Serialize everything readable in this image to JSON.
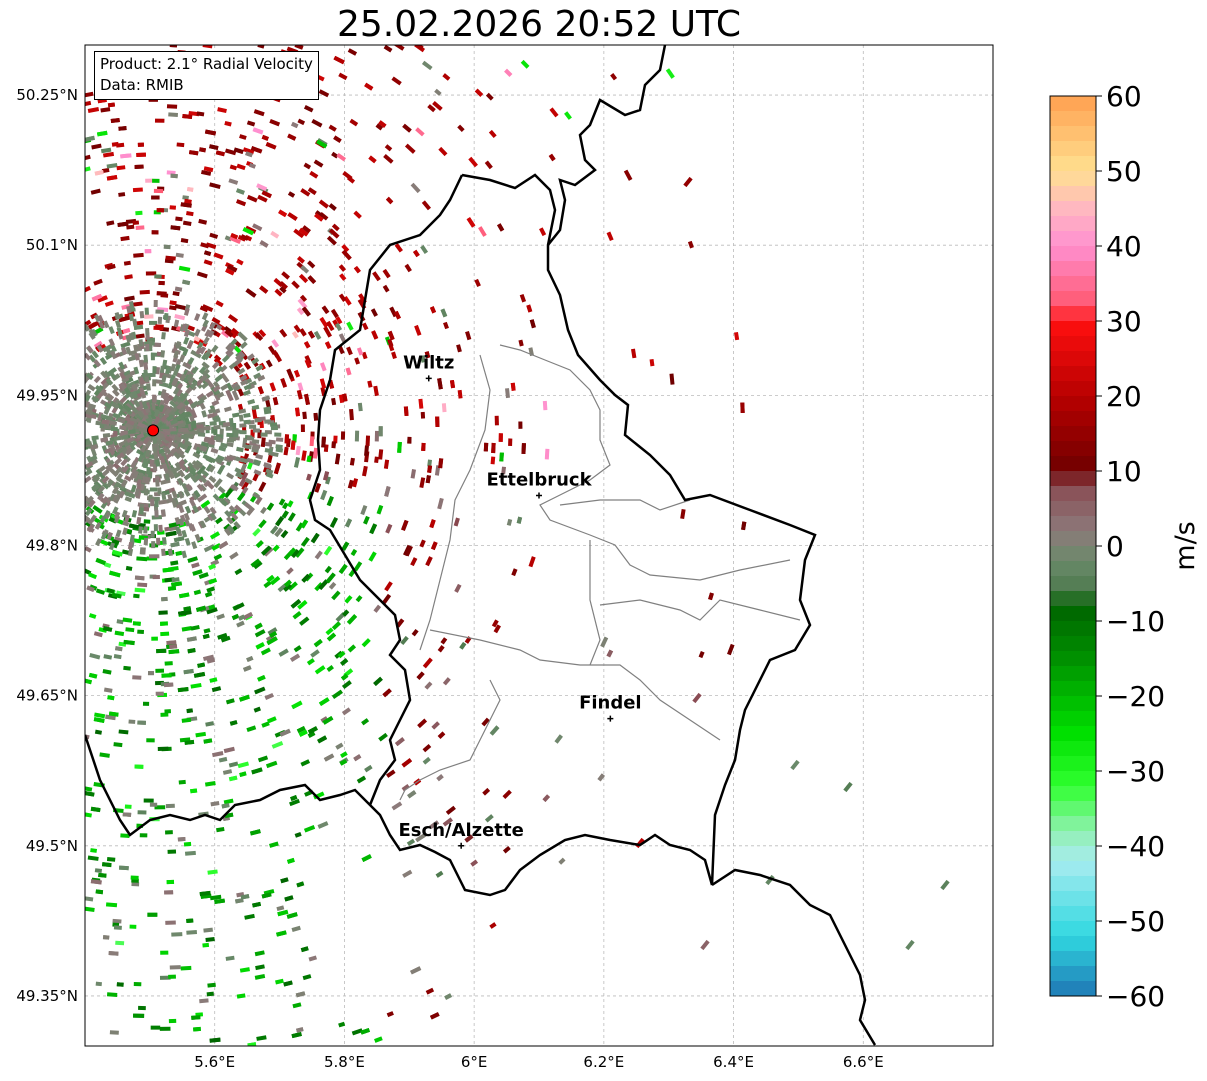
{
  "title": "25.02.2026 20:52 UTC",
  "info_box": {
    "product": "Product: 2.1° Radial Velocity",
    "data": "Data: RMIB"
  },
  "map": {
    "lon_ticks": [
      "5.6°E",
      "5.8°E",
      "6°E",
      "6.2°E",
      "6.4°E",
      "6.6°E"
    ],
    "lat_ticks": [
      "50.25°N",
      "50.1°N",
      "49.95°N",
      "49.8°N",
      "49.65°N",
      "49.5°N",
      "49.35°N"
    ],
    "lon_range": [
      5.4,
      6.8
    ],
    "lat_range": [
      49.3,
      50.3
    ],
    "radar_site": {
      "lon": 5.505,
      "lat": 49.915,
      "color": "#ff0000"
    },
    "cities": [
      {
        "name": "Wiltz",
        "lon": 5.93,
        "lat": 49.967
      },
      {
        "name": "Ettelbruck",
        "lon": 6.1,
        "lat": 49.85
      },
      {
        "name": "Findel",
        "lon": 6.21,
        "lat": 49.627
      },
      {
        "name": "Esch/Alzette",
        "lon": 5.98,
        "lat": 49.5
      }
    ]
  },
  "colorbar": {
    "label": "m/s",
    "range": [
      -60,
      60
    ],
    "ticks": [
      "60",
      "50",
      "40",
      "30",
      "20",
      "10",
      "0",
      "−10",
      "−20",
      "−30",
      "−40",
      "−50",
      "−60"
    ]
  }
}
